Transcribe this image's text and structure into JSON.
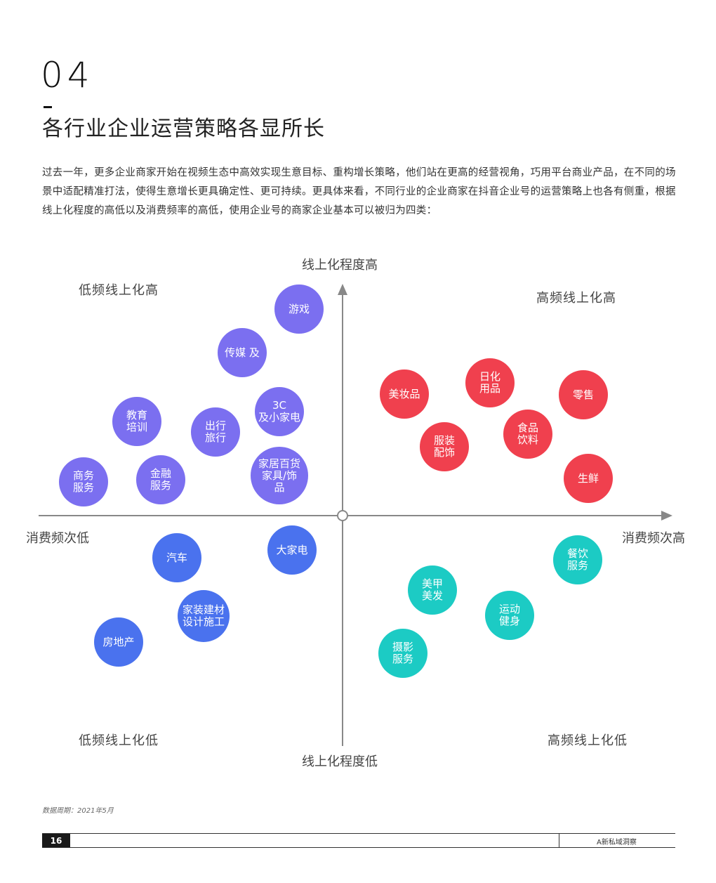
{
  "section": {
    "number": "04",
    "title": "各行业企业运营策略各显所长"
  },
  "intro": "过去一年，更多企业商家开始在视频生态中高效实现生意目标、重构增长策略，他们站在更高的经营视角，巧用平台商业产品，在不同的场景中适配精准打法，使得生意增长更具确定性、更可持续。更具体来看，不同行业的企业商家在抖音企业号的运营策略上也各有侧重，根据线上化程度的高低以及消费频率的高低，使用企业号的商家企业基本可以被归为四类：",
  "axes": {
    "top": "线上化程度高",
    "bottom": "线上化程度低",
    "left": "消费频次低",
    "right": "消费频次高"
  },
  "quadrants": {
    "top_left": "低频线上化高",
    "top_right": "高频线上化高",
    "bottom_left": "低频线上化低",
    "bottom_right": "高频线上化低"
  },
  "colors": {
    "purple": "#7b6ff0",
    "blue": "#4a72ee",
    "red": "#f0404e",
    "teal": "#1ccbc4",
    "axis": "#888888"
  },
  "bubbles": [
    {
      "label": "游戏",
      "quadrant": "top_left"
    },
    {
      "label": "传媒 及",
      "quadrant": "top_left"
    },
    {
      "label": "3C\n及小家电",
      "quadrant": "top_left"
    },
    {
      "label": "教育\n培训",
      "quadrant": "top_left"
    },
    {
      "label": "出行\n旅行",
      "quadrant": "top_left"
    },
    {
      "label": "商务\n服务",
      "quadrant": "top_left"
    },
    {
      "label": "金融\n服务",
      "quadrant": "top_left"
    },
    {
      "label": "家居百货\n家具/饰\n品",
      "quadrant": "top_left"
    },
    {
      "label": "美妆品",
      "quadrant": "top_right"
    },
    {
      "label": "日化\n用品",
      "quadrant": "top_right"
    },
    {
      "label": "零售",
      "quadrant": "top_right"
    },
    {
      "label": "服装\n配饰",
      "quadrant": "top_right"
    },
    {
      "label": "食品\n饮料",
      "quadrant": "top_right"
    },
    {
      "label": "生鲜",
      "quadrant": "top_right"
    },
    {
      "label": "汽车",
      "quadrant": "bottom_left"
    },
    {
      "label": "大家电",
      "quadrant": "bottom_left"
    },
    {
      "label": "家装建材\n设计施工",
      "quadrant": "bottom_left"
    },
    {
      "label": "房地产",
      "quadrant": "bottom_left"
    },
    {
      "label": "餐饮\n服务",
      "quadrant": "bottom_right"
    },
    {
      "label": "美甲\n美发",
      "quadrant": "bottom_right"
    },
    {
      "label": "运动\n健身",
      "quadrant": "bottom_right"
    },
    {
      "label": "摄影\n服务",
      "quadrant": "bottom_right"
    }
  ],
  "footer": {
    "source": "数据周期：2021年5月",
    "page": "16",
    "brand": "A新私域洞察"
  }
}
